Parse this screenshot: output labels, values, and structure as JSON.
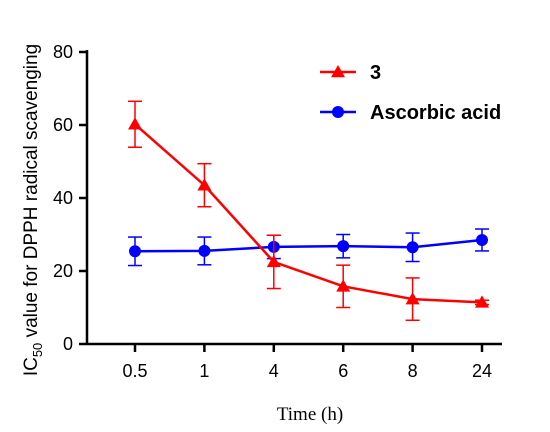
{
  "chart_data": {
    "type": "line",
    "categories": [
      "0.5",
      "1",
      "4",
      "6",
      "8",
      "24"
    ],
    "xlabel": "Time (h)",
    "ylabel": {
      "prefix": "IC",
      "subscript": "50",
      "suffix": " value for DPPH radical scavenging"
    },
    "ylim": [
      0,
      80
    ],
    "yticks": [
      "0",
      "20",
      "40",
      "60",
      "80"
    ],
    "legend_position": "top-right",
    "series": [
      {
        "name": "3",
        "color": "#ff0000",
        "marker": "triangle",
        "values": [
          60.2,
          43.5,
          22.5,
          15.8,
          12.3,
          11.4
        ],
        "error": [
          6.3,
          5.9,
          7.3,
          5.8,
          5.8,
          0.6
        ]
      },
      {
        "name": "Ascorbic acid",
        "color": "#0000ff",
        "marker": "circle",
        "values": [
          25.4,
          25.5,
          26.6,
          26.8,
          26.5,
          28.5
        ],
        "error": [
          3.9,
          3.8,
          3.2,
          3.2,
          3.9,
          3.0
        ]
      }
    ]
  }
}
